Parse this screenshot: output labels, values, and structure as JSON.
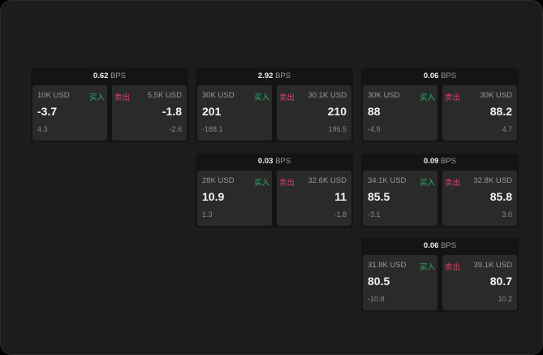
{
  "unit": "BPS",
  "buy_label": "买入",
  "sell_label": "卖出",
  "colors": {
    "buy": "#2fb36a",
    "sell": "#e0406a"
  },
  "cards": [
    {
      "spread": "0.62",
      "bid_size": "10K USD",
      "bid": "-3.7",
      "bid_change": "4.3",
      "ask_size": "5.5K USD",
      "ask": "-1.8",
      "ask_change": "-2.6"
    },
    {
      "spread": "2.92",
      "bid_size": "30K USD",
      "bid": "201",
      "bid_change": "-188.1",
      "ask_size": "30.1K USD",
      "ask": "210",
      "ask_change": "196.5"
    },
    {
      "spread": "0.06",
      "bid_size": "30K USD",
      "bid": "88",
      "bid_change": "-4.9",
      "ask_size": "30K USD",
      "ask": "88.2",
      "ask_change": "4.7"
    },
    {
      "spread": "0.03",
      "bid_size": "28K USD",
      "bid": "10.9",
      "bid_change": "1.3",
      "ask_size": "32.6K USD",
      "ask": "11",
      "ask_change": "-1.8"
    },
    {
      "spread": "0.09",
      "bid_size": "34.1K USD",
      "bid": "85.5",
      "bid_change": "-3.1",
      "ask_size": "32.8K USD",
      "ask": "85.8",
      "ask_change": "3.0"
    },
    {
      "spread": "0.06",
      "bid_size": "31.8K USD",
      "bid": "80.5",
      "bid_change": "-10.8",
      "ask_size": "39.1K USD",
      "ask": "80.7",
      "ask_change": "10.2"
    }
  ]
}
